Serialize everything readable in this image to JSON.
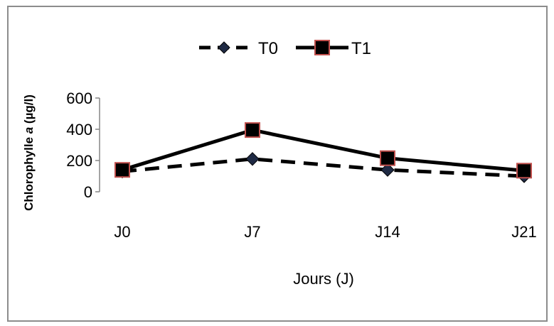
{
  "chart_data": {
    "type": "line",
    "categories": [
      "J0",
      "J7",
      "J14",
      "J21"
    ],
    "series": [
      {
        "name": "T0",
        "values": [
          130,
          210,
          140,
          100
        ],
        "style": "dashed",
        "marker": "diamond",
        "color": "#000000",
        "marker_color": "#1f2a44"
      },
      {
        "name": "T1",
        "values": [
          140,
          395,
          215,
          135
        ],
        "style": "solid",
        "marker": "square",
        "color": "#000000",
        "marker_color": "#000000",
        "marker_edge": "#c0504d"
      }
    ],
    "xlabel": "Jours (J)",
    "ylabel_prefix": "Chlorophylle ",
    "ylabel_italic": "a",
    "ylabel_suffix": " (µg/l)",
    "ylim": [
      0,
      600
    ],
    "yticks": [
      0,
      200,
      400,
      600
    ],
    "grid": false,
    "legend_position": "top"
  }
}
